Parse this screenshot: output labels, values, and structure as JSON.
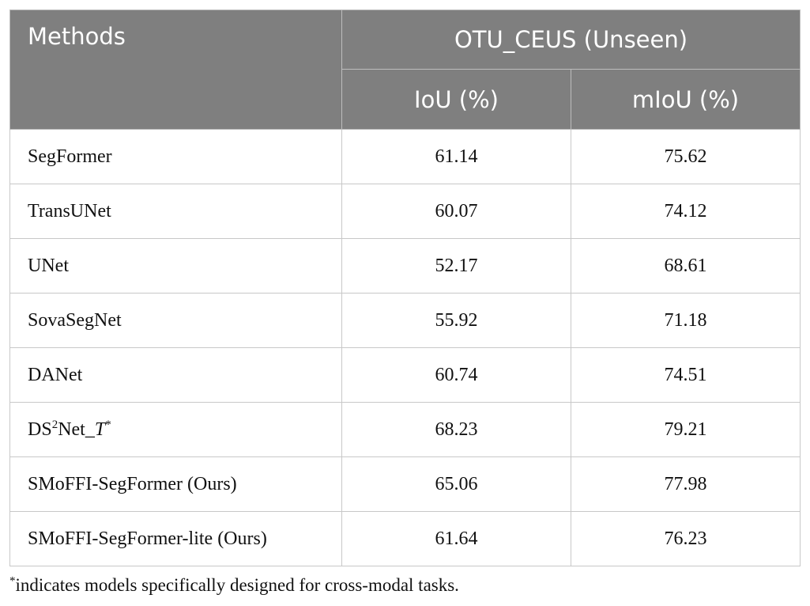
{
  "table": {
    "header": {
      "methods": "Methods",
      "group": "OTU_CEUS (Unseen)",
      "col1": "IoU (%)",
      "col2": "mIoU (%)"
    },
    "rows": [
      {
        "method": "SegFormer",
        "iou": 61.14,
        "miou": 75.62
      },
      {
        "method": "TransUNet",
        "iou": 60.07,
        "miou": 74.12
      },
      {
        "method": "UNet",
        "iou": 52.17,
        "miou": 68.61
      },
      {
        "method": "SovaSegNet",
        "iou": 55.92,
        "miou": 71.18
      },
      {
        "method": "DANet",
        "iou": 60.74,
        "miou": 74.51
      },
      {
        "method": [
          "DS",
          "2",
          "Net_",
          "T",
          "*"
        ],
        "iou": 68.23,
        "miou": 79.21
      },
      {
        "method": "SMoFFI-SegFormer (Ours)",
        "iou": 65.06,
        "miou": 77.98
      },
      {
        "method": "SMoFFI-SegFormer-lite (Ours)",
        "iou": 61.64,
        "miou": 76.23
      }
    ]
  },
  "footnote": {
    "marker": "*",
    "text": "indicates models specifically designed for cross-modal tasks."
  }
}
